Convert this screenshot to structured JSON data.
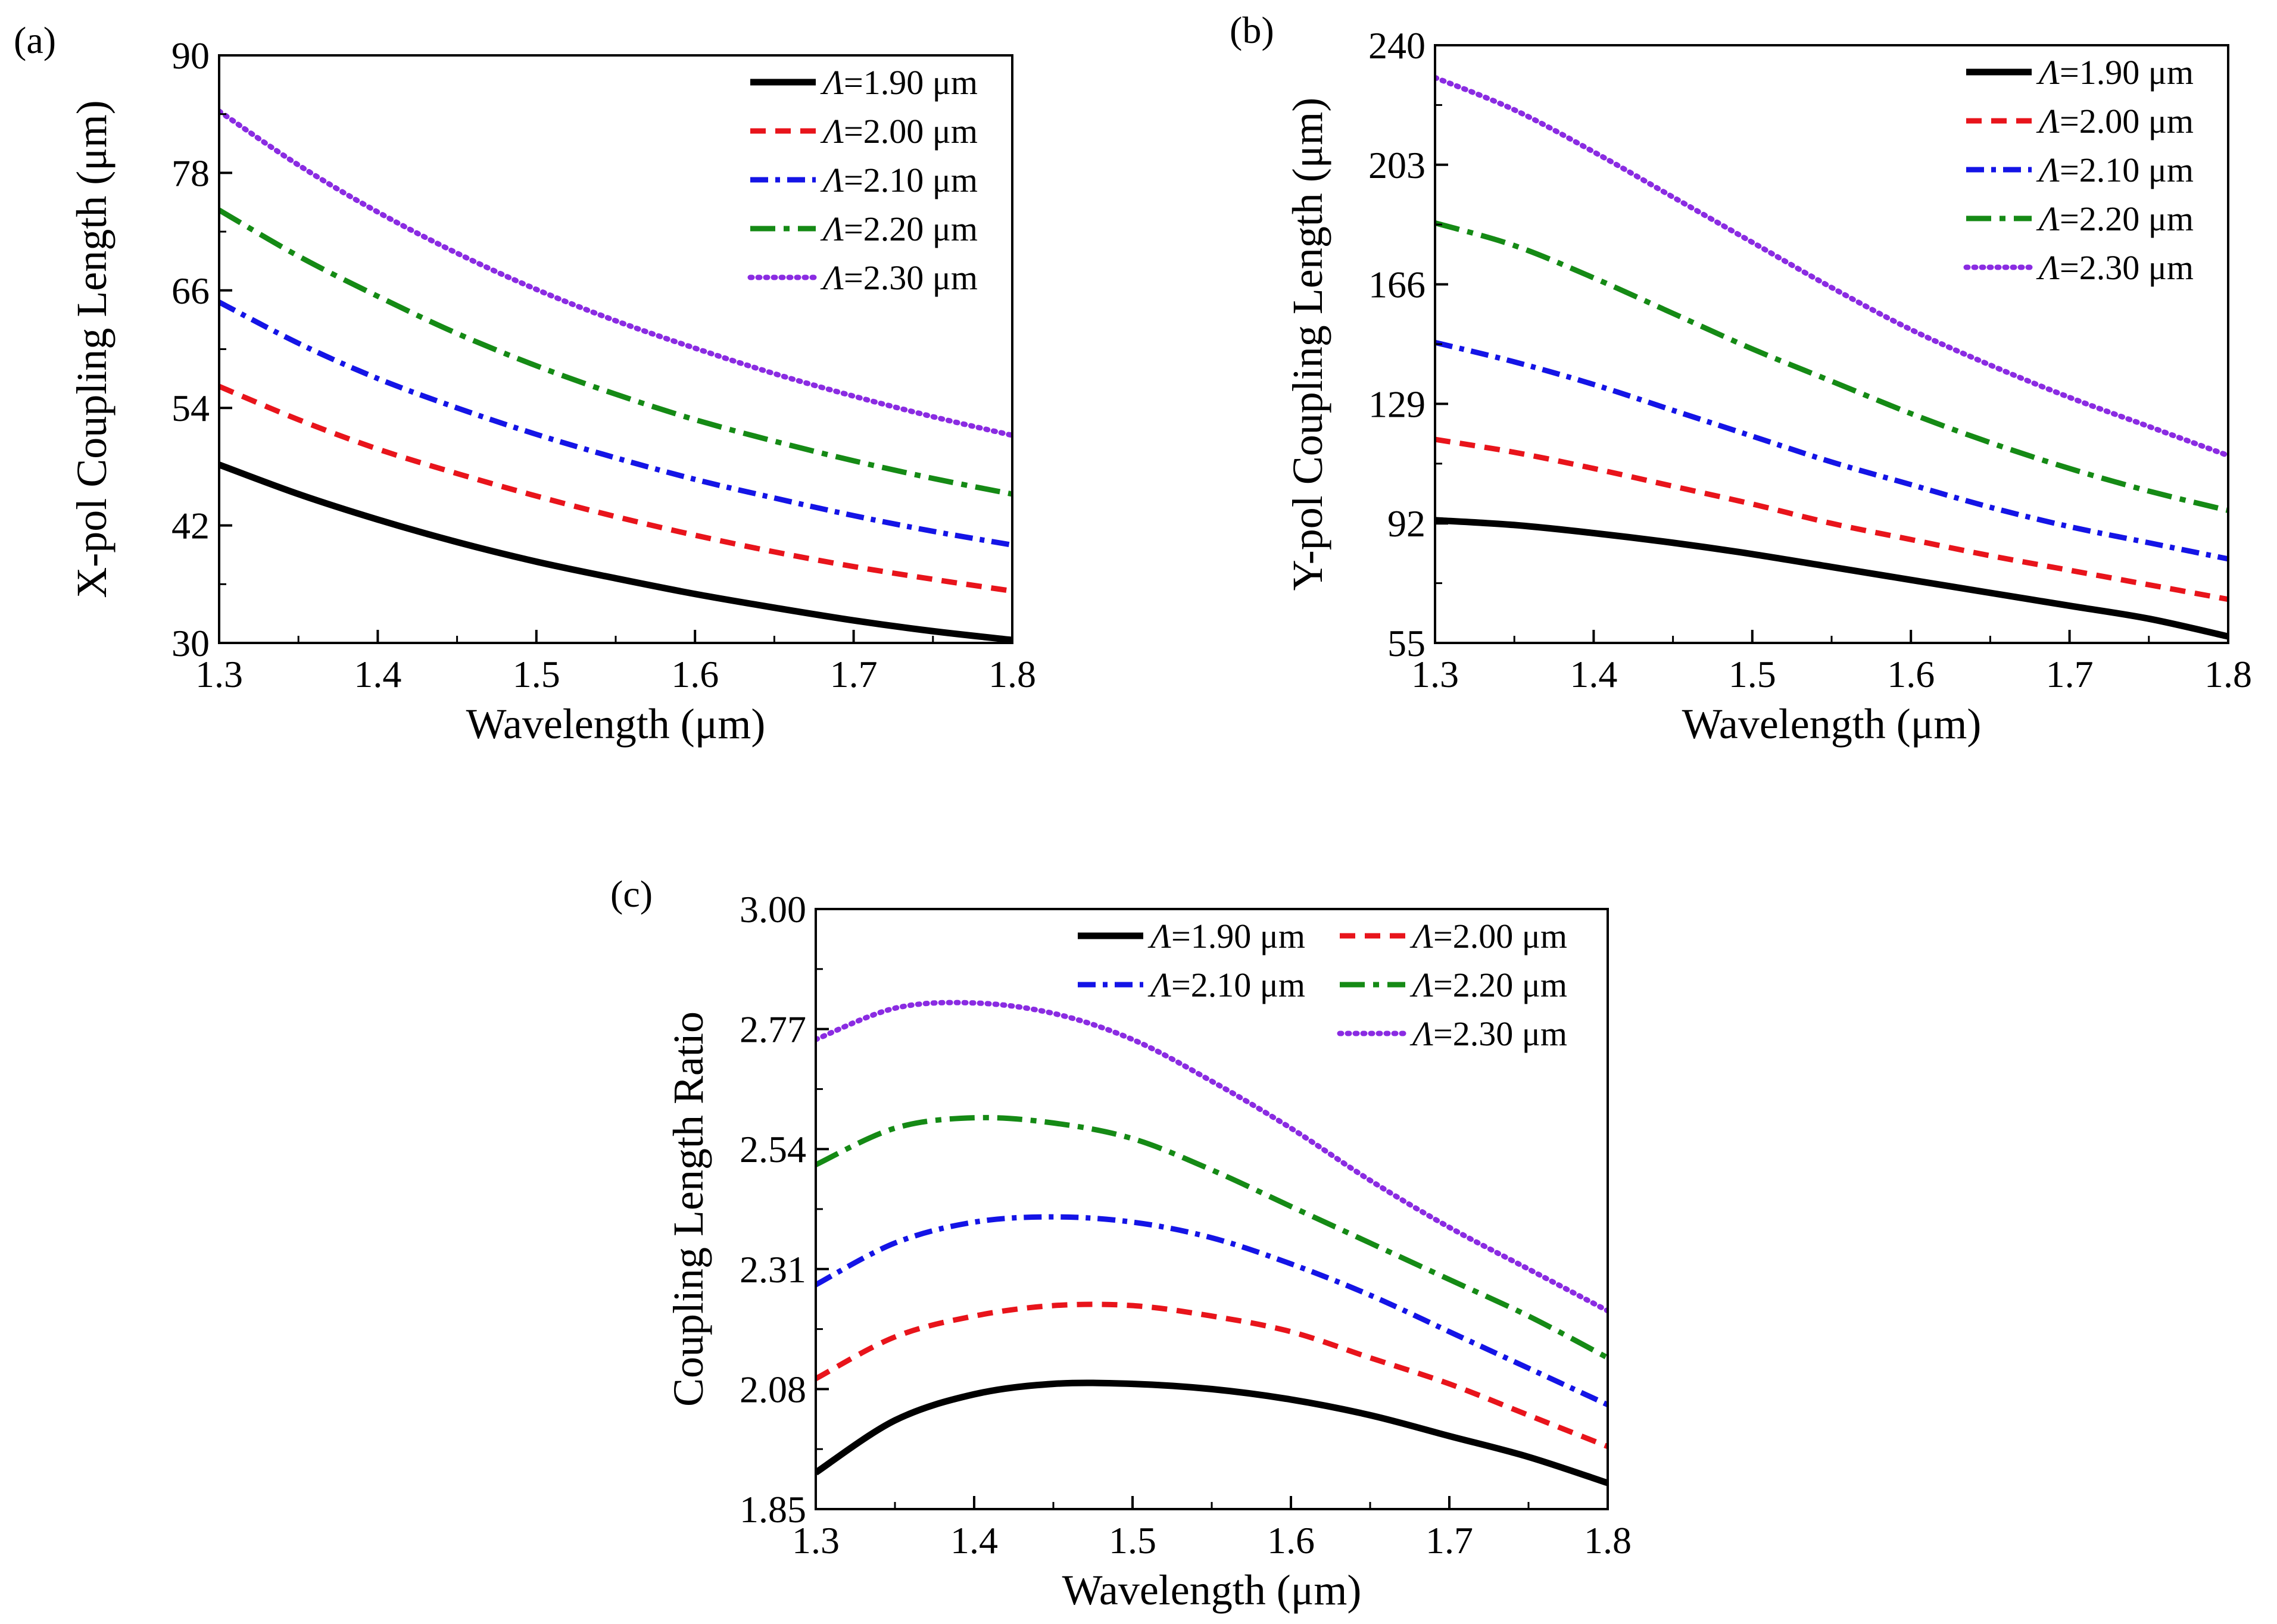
{
  "figure": {
    "background": "#ffffff"
  },
  "styles": [
    {
      "color": "#000000",
      "dash": "",
      "width": 11,
      "cap": "butt"
    },
    {
      "color": "#e8141b",
      "dash": "26 16",
      "width": 9,
      "cap": "butt"
    },
    {
      "color": "#1414e6",
      "dash": "30 12 8 12",
      "width": 9,
      "cap": "butt"
    },
    {
      "color": "#158a15",
      "dash": "42 14 10 14",
      "width": 9,
      "cap": "butt"
    },
    {
      "color": "#8a2be2",
      "dash": "3 10",
      "width": 9,
      "cap": "round"
    }
  ],
  "chart_data": [
    {
      "type": "line",
      "panel_label": "(a)",
      "title": "",
      "xlabel": "Wavelength (μm)",
      "ylabel": "X-pol Coupling Length (μm)",
      "xlim": [
        1.3,
        1.8
      ],
      "ylim": [
        30,
        90
      ],
      "xticks": [
        "1.3",
        "1.4",
        "1.5",
        "1.6",
        "1.7",
        "1.8"
      ],
      "yticks": [
        "30",
        "42",
        "54",
        "66",
        "78",
        "90"
      ],
      "legend_position": "top-right",
      "legend_layout": "single-column",
      "x": [
        1.3,
        1.35,
        1.4,
        1.45,
        1.5,
        1.55,
        1.6,
        1.65,
        1.7,
        1.75,
        1.8
      ],
      "series": [
        {
          "name": "Λ=1.90 μm",
          "sym": "Λ",
          "rest": "=1.90 μm",
          "values": [
            48.2,
            45.2,
            42.6,
            40.3,
            38.3,
            36.6,
            35.0,
            33.6,
            32.3,
            31.2,
            30.3
          ]
        },
        {
          "name": "Λ=2.00 μm",
          "sym": "Λ",
          "rest": "=2.00 μm",
          "values": [
            56.2,
            52.8,
            49.8,
            47.3,
            45.0,
            42.9,
            41.0,
            39.3,
            37.8,
            36.5,
            35.3
          ]
        },
        {
          "name": "Λ=2.10 μm",
          "sym": "Λ",
          "rest": "=2.10 μm",
          "values": [
            64.8,
            60.6,
            57.0,
            54.0,
            51.3,
            48.9,
            46.7,
            44.8,
            43.0,
            41.4,
            40.0
          ]
        },
        {
          "name": "Λ=2.20 μm",
          "sym": "Λ",
          "rest": "=2.20 μm",
          "values": [
            74.2,
            69.5,
            65.4,
            61.6,
            58.3,
            55.4,
            52.8,
            50.6,
            48.6,
            46.8,
            45.2
          ]
        },
        {
          "name": "Λ=2.30 μm",
          "sym": "Λ",
          "rest": "=2.30 μm",
          "values": [
            84.3,
            78.8,
            74.0,
            69.8,
            66.1,
            62.9,
            60.1,
            57.5,
            55.2,
            53.1,
            51.2
          ]
        }
      ]
    },
    {
      "type": "line",
      "panel_label": "(b)",
      "title": "",
      "xlabel": "Wavelength (μm)",
      "ylabel": "Y-pol Coupling Length (μm)",
      "xlim": [
        1.3,
        1.8
      ],
      "ylim": [
        55,
        240
      ],
      "xticks": [
        "1.3",
        "1.4",
        "1.5",
        "1.6",
        "1.7",
        "1.8"
      ],
      "yticks": [
        "55",
        "92",
        "129",
        "166",
        "203",
        "240"
      ],
      "legend_position": "top-right",
      "legend_layout": "single-column",
      "x": [
        1.3,
        1.35,
        1.4,
        1.45,
        1.5,
        1.55,
        1.6,
        1.65,
        1.7,
        1.75,
        1.8
      ],
      "series": [
        {
          "name": "Λ=1.90 μm",
          "sym": "Λ",
          "rest": "=1.90 μm",
          "values": [
            93,
            91.5,
            89,
            86,
            82.5,
            78.5,
            74.5,
            70.5,
            66.5,
            62.5,
            57
          ]
        },
        {
          "name": "Λ=2.00 μm",
          "sym": "Λ",
          "rest": "=2.00 μm",
          "values": [
            118,
            114,
            109,
            103.5,
            98,
            92,
            87,
            82,
            77.5,
            73,
            68.5
          ]
        },
        {
          "name": "Λ=2.10 μm",
          "sym": "Λ",
          "rest": "=2.10 μm",
          "values": [
            148,
            142,
            135,
            127,
            119,
            111,
            104,
            97,
            91,
            86,
            81
          ]
        },
        {
          "name": "Λ=2.20 μm",
          "sym": "Λ",
          "rest": "=2.20 μm",
          "values": [
            185,
            178,
            168,
            157,
            146,
            136,
            126,
            117,
            109,
            102,
            96
          ]
        },
        {
          "name": "Λ=2.30 μm",
          "sym": "Λ",
          "rest": "=2.30 μm",
          "values": [
            230,
            220,
            207,
            193,
            179,
            165,
            152,
            141,
            131,
            122,
            113
          ]
        }
      ]
    },
    {
      "type": "line",
      "panel_label": "(c)",
      "title": "",
      "xlabel": "Wavelength (μm)",
      "ylabel": "Coupling Length Ratio",
      "xlim": [
        1.3,
        1.8
      ],
      "ylim": [
        1.85,
        3.0
      ],
      "xticks": [
        "1.3",
        "1.4",
        "1.5",
        "1.6",
        "1.7",
        "1.8"
      ],
      "yticks": [
        "1.85",
        "2.08",
        "2.31",
        "2.54",
        "2.77",
        "3.00"
      ],
      "legend_position": "top-right",
      "legend_layout": "two-column",
      "x": [
        1.3,
        1.35,
        1.4,
        1.45,
        1.5,
        1.55,
        1.6,
        1.65,
        1.7,
        1.75,
        1.8
      ],
      "series": [
        {
          "name": "Λ=1.90 μm",
          "sym": "Λ",
          "rest": "=1.90 μm",
          "values": [
            1.92,
            2.02,
            2.07,
            2.09,
            2.09,
            2.08,
            2.06,
            2.03,
            1.99,
            1.95,
            1.9
          ]
        },
        {
          "name": "Λ=2.00 μm",
          "sym": "Λ",
          "rest": "=2.00 μm",
          "values": [
            2.1,
            2.18,
            2.22,
            2.24,
            2.24,
            2.22,
            2.19,
            2.14,
            2.09,
            2.03,
            1.97
          ]
        },
        {
          "name": "Λ=2.10 μm",
          "sym": "Λ",
          "rest": "=2.10 μm",
          "values": [
            2.28,
            2.36,
            2.4,
            2.41,
            2.4,
            2.37,
            2.32,
            2.26,
            2.19,
            2.12,
            2.05
          ]
        },
        {
          "name": "Λ=2.20 μm",
          "sym": "Λ",
          "rest": "=2.20 μm",
          "values": [
            2.51,
            2.58,
            2.6,
            2.59,
            2.56,
            2.5,
            2.43,
            2.36,
            2.29,
            2.22,
            2.14
          ]
        },
        {
          "name": "Λ=2.30 μm",
          "sym": "Λ",
          "rest": "=2.30 μm",
          "values": [
            2.75,
            2.81,
            2.82,
            2.8,
            2.75,
            2.67,
            2.58,
            2.48,
            2.39,
            2.31,
            2.23
          ]
        }
      ]
    }
  ]
}
